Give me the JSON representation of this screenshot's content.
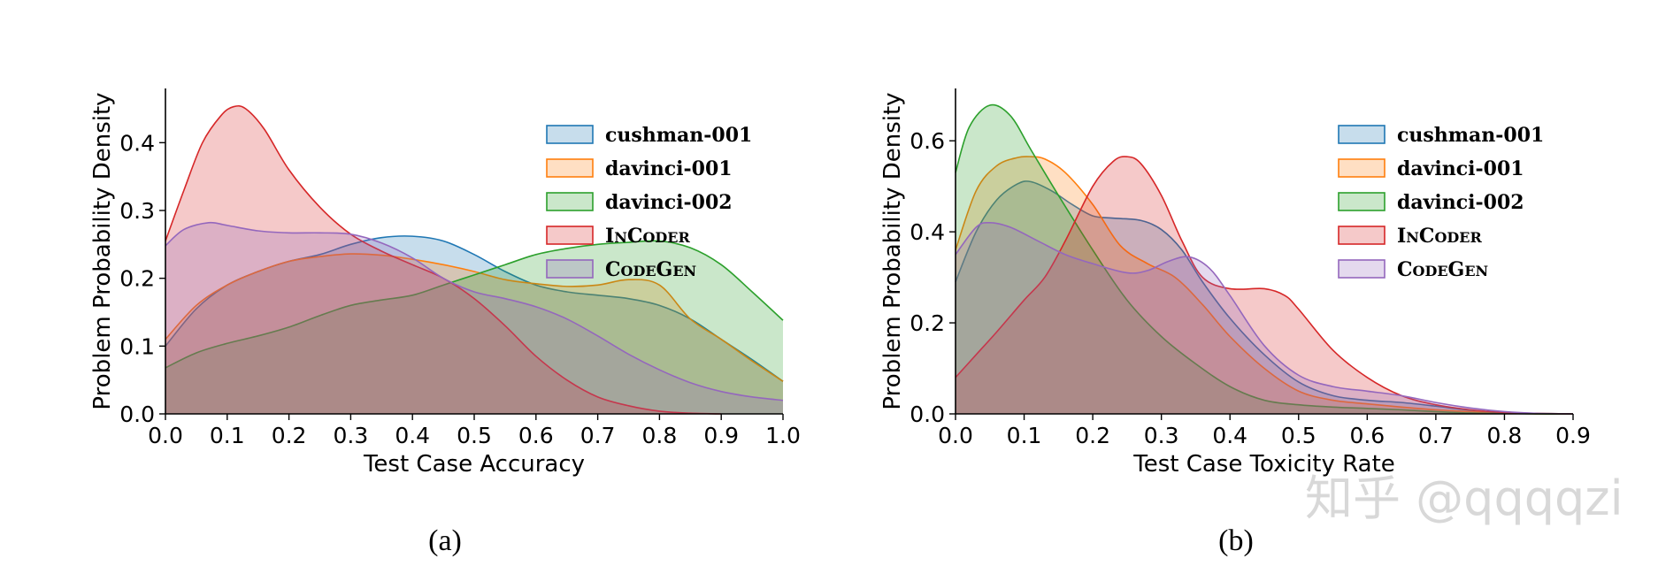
{
  "colors": {
    "cushman-001": "#1f77b4",
    "davinci-001": "#ff7f0e",
    "davinci-002": "#2ca02c",
    "InCoder": "#d62728",
    "CodeGen": "#9467bd"
  },
  "watermark": "知乎 @qqqqzi",
  "chart_data": [
    {
      "type": "area",
      "caption": "(a)",
      "xlabel": "Test Case Accuracy",
      "ylabel": "Problem Probability Density",
      "xlim": [
        0,
        1
      ],
      "ylim": [
        0,
        0.48
      ],
      "xticks": [
        "0.0",
        "0.1",
        "0.2",
        "0.3",
        "0.4",
        "0.5",
        "0.6",
        "0.7",
        "0.8",
        "0.9",
        "1.0"
      ],
      "yticks": [
        "0.0",
        "0.1",
        "0.2",
        "0.3",
        "0.4"
      ],
      "legend_position": "top-right",
      "series": [
        {
          "name": "cushman-001",
          "x": [
            0,
            0.05,
            0.1,
            0.15,
            0.2,
            0.25,
            0.3,
            0.35,
            0.4,
            0.45,
            0.5,
            0.55,
            0.6,
            0.65,
            0.7,
            0.75,
            0.8,
            0.85,
            0.9,
            0.95,
            1.0
          ],
          "y": [
            0.1,
            0.155,
            0.19,
            0.21,
            0.225,
            0.235,
            0.25,
            0.26,
            0.262,
            0.255,
            0.235,
            0.21,
            0.19,
            0.18,
            0.175,
            0.17,
            0.16,
            0.14,
            0.11,
            0.08,
            0.048
          ]
        },
        {
          "name": "davinci-001",
          "x": [
            0,
            0.05,
            0.1,
            0.15,
            0.2,
            0.25,
            0.3,
            0.35,
            0.4,
            0.45,
            0.5,
            0.55,
            0.6,
            0.65,
            0.7,
            0.75,
            0.8,
            0.85,
            0.9,
            0.95,
            1.0
          ],
          "y": [
            0.11,
            0.16,
            0.19,
            0.21,
            0.225,
            0.232,
            0.236,
            0.234,
            0.228,
            0.22,
            0.21,
            0.198,
            0.192,
            0.188,
            0.19,
            0.198,
            0.19,
            0.14,
            0.11,
            0.078,
            0.048
          ]
        },
        {
          "name": "davinci-002",
          "x": [
            0,
            0.05,
            0.1,
            0.15,
            0.2,
            0.25,
            0.3,
            0.35,
            0.4,
            0.45,
            0.5,
            0.55,
            0.6,
            0.65,
            0.7,
            0.75,
            0.8,
            0.85,
            0.9,
            0.95,
            1.0
          ],
          "y": [
            0.068,
            0.09,
            0.104,
            0.115,
            0.128,
            0.145,
            0.16,
            0.168,
            0.175,
            0.19,
            0.205,
            0.22,
            0.235,
            0.244,
            0.25,
            0.253,
            0.255,
            0.245,
            0.22,
            0.18,
            0.138
          ]
        },
        {
          "name": "InCoder",
          "x": [
            0,
            0.03,
            0.06,
            0.09,
            0.11,
            0.13,
            0.16,
            0.2,
            0.25,
            0.3,
            0.35,
            0.4,
            0.45,
            0.5,
            0.55,
            0.6,
            0.65,
            0.7,
            0.75,
            0.8,
            0.85,
            0.9
          ],
          "y": [
            0.255,
            0.33,
            0.4,
            0.44,
            0.453,
            0.45,
            0.42,
            0.36,
            0.305,
            0.265,
            0.24,
            0.22,
            0.2,
            0.17,
            0.13,
            0.085,
            0.05,
            0.025,
            0.012,
            0.004,
            0.001,
            0.0
          ]
        },
        {
          "name": "CodeGen",
          "x": [
            0,
            0.03,
            0.07,
            0.1,
            0.15,
            0.2,
            0.25,
            0.3,
            0.35,
            0.4,
            0.45,
            0.5,
            0.55,
            0.6,
            0.65,
            0.7,
            0.75,
            0.8,
            0.85,
            0.9,
            0.95,
            1.0
          ],
          "y": [
            0.248,
            0.272,
            0.282,
            0.278,
            0.27,
            0.267,
            0.267,
            0.265,
            0.252,
            0.23,
            0.2,
            0.18,
            0.17,
            0.158,
            0.14,
            0.115,
            0.088,
            0.065,
            0.046,
            0.033,
            0.025,
            0.02
          ]
        }
      ]
    },
    {
      "type": "area",
      "caption": "(b)",
      "xlabel": "Test Case Toxicity Rate",
      "ylabel": "Problem Probability Density",
      "xlim": [
        0,
        0.9
      ],
      "ylim": [
        0,
        0.715
      ],
      "xticks": [
        "0.0",
        "0.1",
        "0.2",
        "0.3",
        "0.4",
        "0.5",
        "0.6",
        "0.7",
        "0.8",
        "0.9"
      ],
      "yticks": [
        "0.0",
        "0.2",
        "0.4",
        "0.6"
      ],
      "legend_position": "top-right",
      "series": [
        {
          "name": "cushman-001",
          "x": [
            0,
            0.03,
            0.06,
            0.09,
            0.11,
            0.14,
            0.17,
            0.2,
            0.23,
            0.27,
            0.3,
            0.33,
            0.36,
            0.4,
            0.45,
            0.5,
            0.55,
            0.6,
            0.65,
            0.7,
            0.75,
            0.8,
            0.85,
            0.9
          ],
          "y": [
            0.29,
            0.4,
            0.47,
            0.505,
            0.51,
            0.49,
            0.46,
            0.435,
            0.43,
            0.425,
            0.405,
            0.36,
            0.29,
            0.21,
            0.13,
            0.07,
            0.04,
            0.03,
            0.025,
            0.017,
            0.008,
            0.003,
            0.001,
            0.0
          ]
        },
        {
          "name": "davinci-001",
          "x": [
            0,
            0.03,
            0.06,
            0.09,
            0.11,
            0.13,
            0.16,
            0.2,
            0.24,
            0.28,
            0.32,
            0.36,
            0.4,
            0.45,
            0.5,
            0.55,
            0.6,
            0.65,
            0.7,
            0.75,
            0.8,
            0.85,
            0.9
          ],
          "y": [
            0.36,
            0.49,
            0.545,
            0.563,
            0.565,
            0.56,
            0.53,
            0.46,
            0.37,
            0.33,
            0.3,
            0.24,
            0.17,
            0.1,
            0.05,
            0.03,
            0.022,
            0.015,
            0.009,
            0.005,
            0.002,
            0.0,
            0.0
          ]
        },
        {
          "name": "davinci-002",
          "x": [
            0,
            0.02,
            0.05,
            0.08,
            0.11,
            0.15,
            0.2,
            0.25,
            0.3,
            0.35,
            0.4,
            0.45,
            0.5,
            0.55,
            0.6,
            0.65,
            0.7,
            0.75,
            0.8,
            0.85,
            0.9
          ],
          "y": [
            0.53,
            0.63,
            0.678,
            0.655,
            0.58,
            0.48,
            0.36,
            0.25,
            0.17,
            0.11,
            0.06,
            0.03,
            0.02,
            0.015,
            0.012,
            0.009,
            0.005,
            0.002,
            0.001,
            0.0,
            0.0
          ]
        },
        {
          "name": "InCoder",
          "x": [
            0,
            0.03,
            0.06,
            0.1,
            0.13,
            0.16,
            0.2,
            0.23,
            0.25,
            0.27,
            0.3,
            0.33,
            0.36,
            0.4,
            0.45,
            0.48,
            0.5,
            0.55,
            0.6,
            0.65,
            0.7,
            0.75,
            0.8,
            0.85,
            0.9
          ],
          "y": [
            0.08,
            0.13,
            0.18,
            0.25,
            0.3,
            0.38,
            0.5,
            0.555,
            0.565,
            0.55,
            0.48,
            0.38,
            0.3,
            0.275,
            0.275,
            0.26,
            0.23,
            0.14,
            0.08,
            0.04,
            0.02,
            0.009,
            0.003,
            0.001,
            0.0
          ]
        },
        {
          "name": "CodeGen",
          "x": [
            0,
            0.03,
            0.05,
            0.08,
            0.12,
            0.16,
            0.2,
            0.25,
            0.28,
            0.31,
            0.34,
            0.37,
            0.4,
            0.45,
            0.5,
            0.55,
            0.6,
            0.65,
            0.7,
            0.75,
            0.8,
            0.85,
            0.9
          ],
          "y": [
            0.35,
            0.41,
            0.42,
            0.41,
            0.38,
            0.35,
            0.33,
            0.31,
            0.315,
            0.335,
            0.345,
            0.32,
            0.26,
            0.15,
            0.085,
            0.06,
            0.05,
            0.04,
            0.025,
            0.013,
            0.005,
            0.001,
            0.0
          ]
        }
      ]
    }
  ]
}
